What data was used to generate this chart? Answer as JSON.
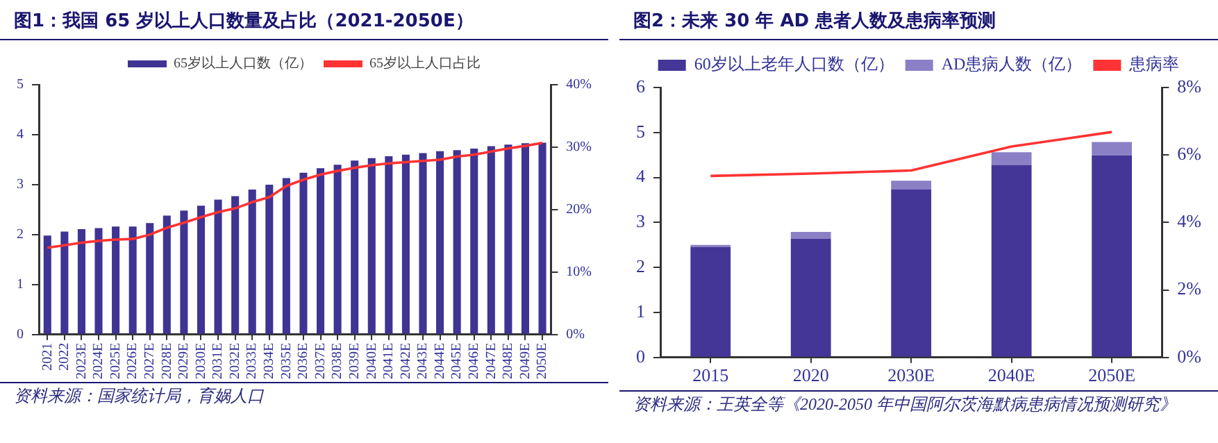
{
  "chart_data": [
    {
      "type": "bar",
      "title": "图1：我国 65 岁以上人口数量及占比（2021-2050E）",
      "categories": [
        "2021",
        "2022",
        "2023E",
        "2024E",
        "2025E",
        "2026E",
        "2027E",
        "2028E",
        "2029E",
        "2030E",
        "2031E",
        "2032E",
        "2033E",
        "2034E",
        "2035E",
        "2036E",
        "2037E",
        "2038E",
        "2039E",
        "2040E",
        "2041E",
        "2042E",
        "2043E",
        "2044E",
        "2045E",
        "2046E",
        "2047E",
        "2048E",
        "2049E",
        "2050E"
      ],
      "series": [
        {
          "name": "65岁以上人口数（亿）",
          "color": "#3f3393",
          "values": [
            1.98,
            2.06,
            2.11,
            2.13,
            2.16,
            2.16,
            2.23,
            2.38,
            2.48,
            2.58,
            2.7,
            2.77,
            2.9,
            3.0,
            3.13,
            3.24,
            3.33,
            3.4,
            3.48,
            3.53,
            3.57,
            3.6,
            3.63,
            3.67,
            3.69,
            3.72,
            3.77,
            3.8,
            3.83,
            3.84
          ]
        },
        {
          "name": "65岁以上人口占比",
          "type": "line",
          "axis": "y2",
          "color": "#ff3333",
          "values": [
            13.9,
            14.3,
            14.7,
            15.0,
            15.2,
            15.3,
            16.0,
            17.1,
            17.9,
            18.8,
            19.6,
            20.2,
            21.2,
            22.0,
            23.8,
            24.8,
            25.6,
            26.2,
            26.7,
            27.1,
            27.4,
            27.6,
            27.8,
            28.0,
            28.5,
            28.8,
            29.3,
            29.8,
            30.2,
            30.7
          ]
        }
      ],
      "ylim": [
        0,
        5
      ],
      "yticks": [
        0,
        1,
        2,
        3,
        4,
        5
      ],
      "y2lim": [
        0,
        40
      ],
      "y2ticks": [
        {
          "value": 0,
          "label": "0%"
        },
        {
          "value": 10,
          "label": "10%"
        },
        {
          "value": 20,
          "label": "20%"
        },
        {
          "value": 30,
          "label": "30%"
        },
        {
          "value": 40,
          "label": "40%"
        }
      ],
      "legend": "top",
      "grid": false,
      "annotations": [
        "资料来源：国家统计局，育娲人口"
      ]
    },
    {
      "type": "bar",
      "title": "图2：未来 30 年 AD 患者人数及患病率预测",
      "stacked": true,
      "categories": [
        "2015",
        "2020",
        "2030E",
        "2040E",
        "2050E"
      ],
      "series": [
        {
          "name": "60岁以上老年人口数（亿）",
          "color": "#433696",
          "values": [
            2.45,
            2.64,
            3.73,
            4.28,
            4.49
          ]
        },
        {
          "name": "AD患病人数（亿）",
          "color": "#8b80c6",
          "values": [
            0.05,
            0.15,
            0.2,
            0.28,
            0.3
          ]
        },
        {
          "name": "患病率",
          "type": "line",
          "axis": "y2",
          "color": "#ff3333",
          "values": [
            5.38,
            5.45,
            5.54,
            6.25,
            6.68
          ]
        }
      ],
      "ylim": [
        0,
        6
      ],
      "yticks": [
        0,
        1,
        2,
        3,
        4,
        5,
        6
      ],
      "y2lim": [
        0,
        8
      ],
      "y2ticks": [
        {
          "value": 0,
          "label": "0%"
        },
        {
          "value": 2,
          "label": "2%"
        },
        {
          "value": 4,
          "label": "4%"
        },
        {
          "value": 6,
          "label": "6%"
        },
        {
          "value": 8,
          "label": "8%"
        }
      ],
      "legend": "top",
      "grid": false,
      "annotations": [
        "资料来源：王英全等《2020-2050 年中国阿尔茨海默病患病情况预测研究》"
      ]
    }
  ]
}
